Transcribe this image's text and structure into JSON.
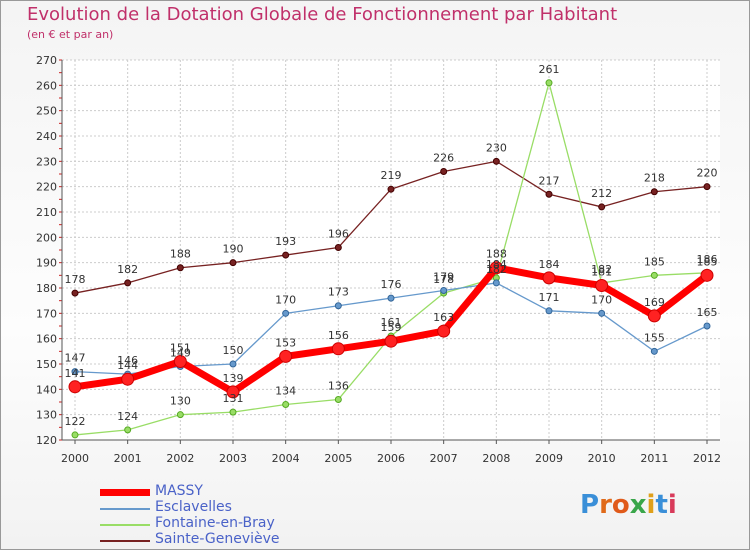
{
  "header": {
    "title": "Evolution de la Dotation Globale de Fonctionnement par Habitant",
    "subtitle": "(en € et par an)"
  },
  "logo": {
    "text": "Proxiti"
  },
  "chart_data": {
    "type": "line",
    "title": "Evolution de la Dotation Globale de Fonctionnement par Habitant",
    "subtitle": "(en € et par an)",
    "xlabel": "",
    "ylabel": "",
    "x": [
      "2000",
      "2001",
      "2002",
      "2003",
      "2004",
      "2005",
      "2006",
      "2007",
      "2008",
      "2009",
      "2010",
      "2011",
      "2012"
    ],
    "ylim": [
      120,
      270
    ],
    "yticks": [
      120,
      130,
      140,
      150,
      160,
      170,
      180,
      190,
      200,
      210,
      220,
      230,
      240,
      250,
      260,
      270
    ],
    "grid": true,
    "legend_position": "bottom-left",
    "series": [
      {
        "name": "MASSY",
        "color": "#ff0000",
        "values": [
          141,
          144,
          151,
          139,
          153,
          156,
          159,
          163,
          188,
          184,
          181,
          169,
          185
        ]
      },
      {
        "name": "Esclavelles",
        "color": "#6699cc",
        "values": [
          147,
          146,
          149,
          150,
          170,
          173,
          176,
          179,
          182,
          171,
          170,
          155,
          165
        ]
      },
      {
        "name": "Fontaine-en-Bray",
        "color": "#99dd66",
        "values": [
          122,
          124,
          130,
          131,
          134,
          136,
          161,
          178,
          184,
          261,
          182,
          185,
          186
        ]
      },
      {
        "name": "Sainte-Geneviève",
        "color": "#772222",
        "values": [
          178,
          182,
          188,
          190,
          193,
          196,
          219,
          226,
          230,
          217,
          212,
          218,
          220
        ]
      }
    ]
  }
}
